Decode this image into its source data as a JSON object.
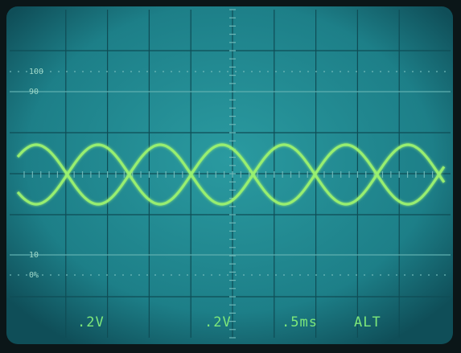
{
  "graticule_labels": [
    "100",
    "90",
    "10",
    "0%"
  ],
  "readout": [
    ".2V",
    ".2V",
    ".5ms",
    "ALT"
  ]
}
